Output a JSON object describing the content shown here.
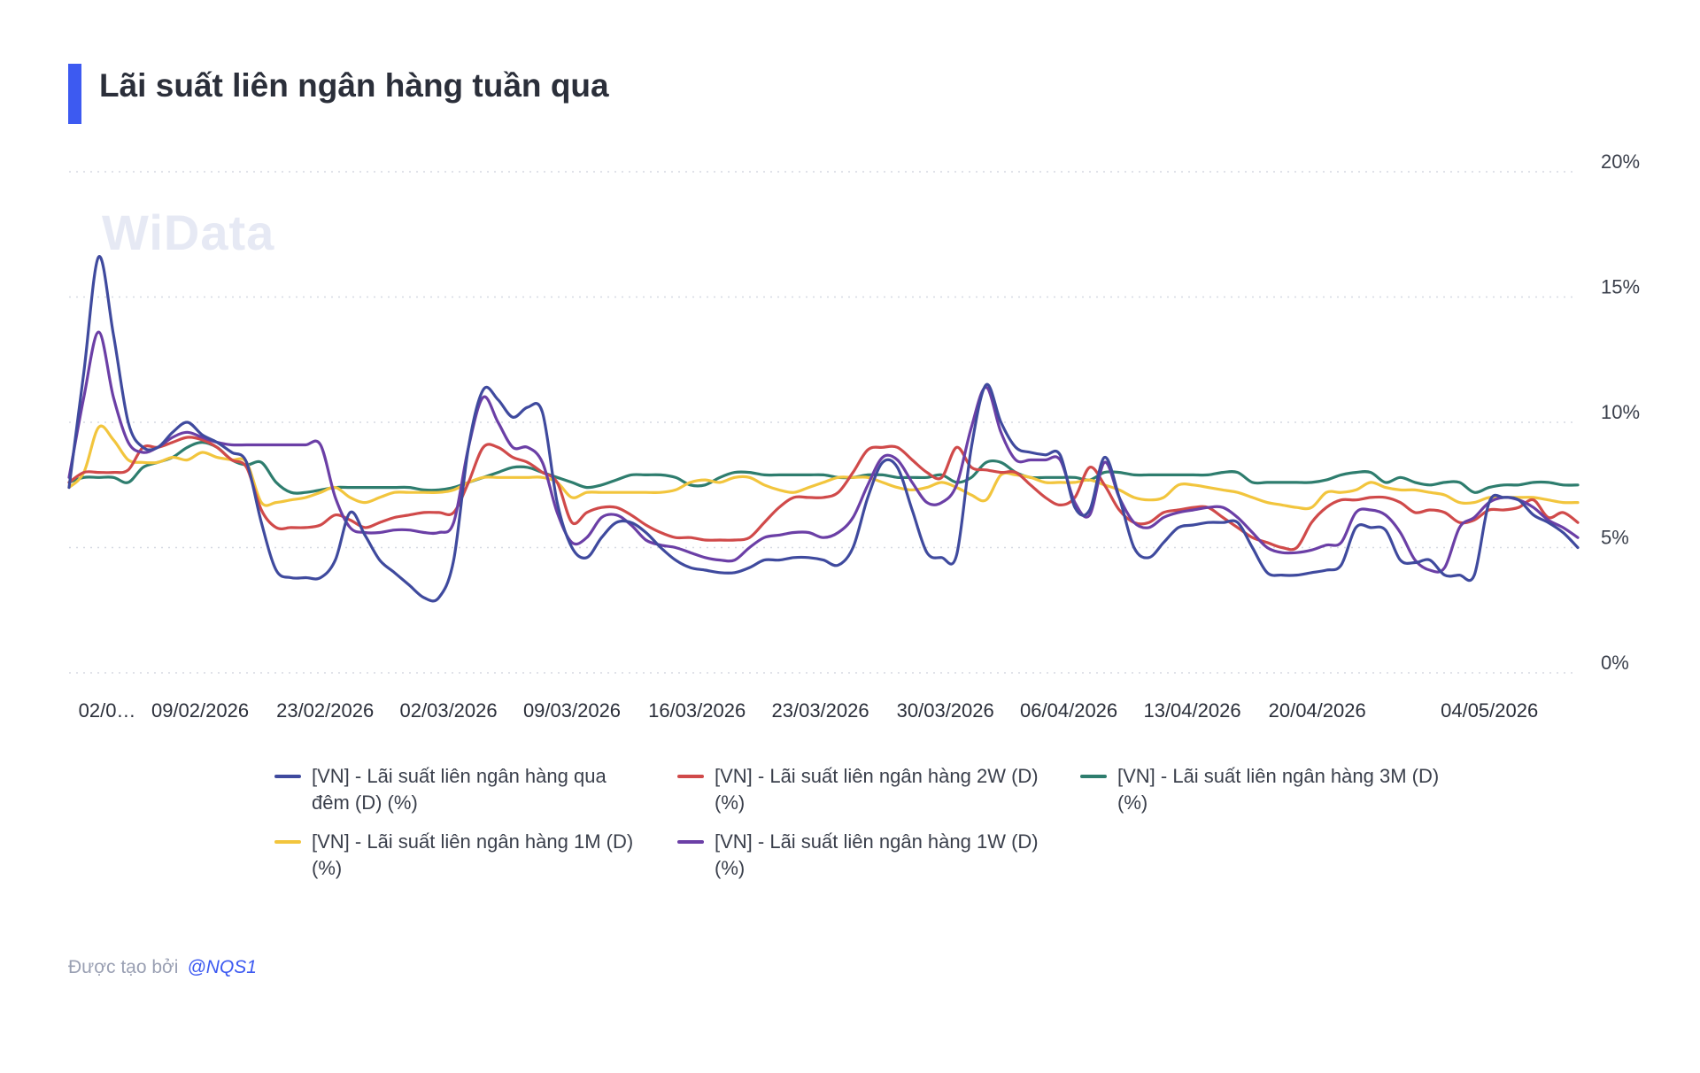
{
  "title": "Lãi suất liên ngân hàng tuần qua",
  "watermark": "WiData",
  "footer": {
    "prefix": "Được tạo bởi",
    "author": "@NQS1"
  },
  "colors": {
    "accent": "#3d5af1"
  },
  "chart_data": {
    "type": "line",
    "title": "Lãi suất liên ngân hàng tuần qua",
    "ylim": [
      0,
      20
    ],
    "yticks": [
      0,
      5,
      10,
      15,
      20
    ],
    "ytick_labels": [
      "0%",
      "5%",
      "10%",
      "15%",
      "20%"
    ],
    "y_axis_side": "right",
    "grid": "horizontal-dotted",
    "x_index_range": [
      0,
      99
    ],
    "xticks": [
      {
        "i": 2.5,
        "label": "02/0…"
      },
      {
        "i": 8.6,
        "label": "09/02/2026"
      },
      {
        "i": 16.8,
        "label": "23/02/2026"
      },
      {
        "i": 24.9,
        "label": "02/03/2026"
      },
      {
        "i": 33.0,
        "label": "09/03/2026"
      },
      {
        "i": 41.2,
        "label": "16/03/2026"
      },
      {
        "i": 49.3,
        "label": "23/03/2026"
      },
      {
        "i": 57.5,
        "label": "30/03/2026"
      },
      {
        "i": 65.6,
        "label": "06/04/2026"
      },
      {
        "i": 73.7,
        "label": "13/04/2026"
      },
      {
        "i": 81.9,
        "label": "20/04/2026"
      },
      {
        "i": 93.2,
        "label": "04/05/2026"
      }
    ],
    "legend_position": "bottom",
    "series": [
      {
        "name": "[VN] - Lãi suất liên ngân hàng qua đêm (D) (%)",
        "color": "#3f4a9e",
        "values": [
          7.4,
          12.0,
          16.6,
          13.5,
          10.0,
          9.0,
          9.0,
          9.6,
          10.0,
          9.5,
          9.2,
          8.8,
          8.4,
          6.0,
          4.1,
          3.8,
          3.8,
          3.8,
          4.5,
          6.4,
          5.5,
          4.5,
          4.0,
          3.5,
          3.0,
          3.0,
          4.5,
          9.0,
          11.3,
          10.9,
          10.2,
          10.6,
          10.4,
          6.8,
          5.0,
          4.6,
          5.4,
          6.0,
          6.0,
          5.6,
          5.0,
          4.5,
          4.2,
          4.1,
          4.0,
          4.0,
          4.2,
          4.5,
          4.5,
          4.6,
          4.6,
          4.5,
          4.3,
          5.0,
          7.0,
          8.4,
          8.2,
          6.5,
          4.8,
          4.6,
          4.7,
          9.0,
          11.5,
          10.0,
          9.0,
          8.8,
          8.7,
          8.7,
          6.6,
          6.5,
          8.6,
          7.0,
          5.0,
          4.6,
          5.2,
          5.8,
          5.9,
          6.0,
          6.0,
          6.0,
          5.0,
          4.0,
          3.9,
          3.9,
          4.0,
          4.1,
          4.3,
          5.8,
          5.8,
          5.7,
          4.5,
          4.4,
          4.5,
          3.9,
          3.9,
          3.9,
          6.8,
          7.0,
          6.9,
          6.3,
          6.0,
          5.6,
          5.0
        ]
      },
      {
        "name": "[VN] - Lãi suất liên ngân hàng 2W (D) (%)",
        "color": "#d04a4a",
        "values": [
          7.6,
          8.0,
          8.0,
          8.0,
          8.1,
          9.0,
          9.0,
          9.2,
          9.4,
          9.3,
          9.0,
          8.5,
          8.2,
          6.5,
          5.8,
          5.8,
          5.8,
          5.9,
          6.3,
          6.1,
          5.8,
          6.0,
          6.2,
          6.3,
          6.4,
          6.4,
          6.4,
          7.6,
          9.0,
          9.0,
          8.6,
          8.4,
          8.0,
          7.6,
          6.0,
          6.4,
          6.6,
          6.6,
          6.3,
          5.9,
          5.6,
          5.4,
          5.4,
          5.3,
          5.3,
          5.3,
          5.4,
          6.0,
          6.6,
          7.0,
          7.0,
          7.0,
          7.2,
          8.0,
          8.9,
          9.0,
          9.0,
          8.5,
          8.0,
          7.8,
          9.0,
          8.2,
          8.1,
          8.0,
          8.0,
          7.5,
          7.0,
          6.7,
          7.0,
          8.2,
          7.5,
          6.5,
          6.0,
          6.0,
          6.4,
          6.5,
          6.6,
          6.6,
          6.2,
          5.8,
          5.4,
          5.2,
          5.0,
          5.0,
          6.0,
          6.6,
          6.9,
          6.9,
          7.0,
          7.0,
          6.8,
          6.4,
          6.5,
          6.4,
          6.0,
          6.1,
          6.5,
          6.5,
          6.6,
          6.9,
          6.2,
          6.4,
          6.0
        ]
      },
      {
        "name": "[VN] - Lãi suất liên ngân hàng 3M (D) (%)",
        "color": "#2e7d6e",
        "values": [
          7.6,
          7.8,
          7.8,
          7.8,
          7.6,
          8.2,
          8.4,
          8.6,
          9.0,
          9.2,
          9.0,
          8.5,
          8.3,
          8.4,
          7.6,
          7.2,
          7.2,
          7.3,
          7.4,
          7.4,
          7.4,
          7.4,
          7.4,
          7.4,
          7.3,
          7.3,
          7.4,
          7.6,
          7.8,
          8.0,
          8.2,
          8.2,
          8.0,
          7.8,
          7.6,
          7.4,
          7.5,
          7.7,
          7.9,
          7.9,
          7.9,
          7.8,
          7.5,
          7.5,
          7.8,
          8.0,
          8.0,
          7.9,
          7.9,
          7.9,
          7.9,
          7.9,
          7.8,
          7.8,
          7.9,
          7.9,
          7.8,
          7.8,
          7.8,
          7.9,
          7.6,
          7.8,
          8.4,
          8.4,
          8.0,
          7.8,
          7.8,
          7.8,
          7.8,
          7.7,
          8.0,
          8.0,
          7.9,
          7.9,
          7.9,
          7.9,
          7.9,
          7.9,
          8.0,
          8.0,
          7.6,
          7.6,
          7.6,
          7.6,
          7.6,
          7.7,
          7.9,
          8.0,
          8.0,
          7.6,
          7.8,
          7.6,
          7.5,
          7.6,
          7.6,
          7.2,
          7.4,
          7.5,
          7.5,
          7.6,
          7.6,
          7.5,
          7.5
        ]
      },
      {
        "name": "[VN] - Lãi suất liên ngân hàng 1M (D) (%)",
        "color": "#f2c53d",
        "values": [
          7.4,
          8.0,
          9.8,
          9.3,
          8.5,
          8.4,
          8.4,
          8.6,
          8.5,
          8.8,
          8.6,
          8.5,
          8.4,
          6.8,
          6.8,
          6.9,
          7.0,
          7.2,
          7.4,
          7.0,
          6.8,
          7.0,
          7.2,
          7.2,
          7.2,
          7.2,
          7.3,
          7.6,
          7.8,
          7.8,
          7.8,
          7.8,
          7.8,
          7.6,
          7.0,
          7.2,
          7.2,
          7.2,
          7.2,
          7.2,
          7.2,
          7.3,
          7.6,
          7.7,
          7.6,
          7.8,
          7.8,
          7.5,
          7.3,
          7.2,
          7.4,
          7.6,
          7.8,
          7.8,
          7.8,
          7.6,
          7.4,
          7.3,
          7.4,
          7.6,
          7.4,
          7.1,
          6.9,
          7.9,
          7.9,
          7.8,
          7.6,
          7.6,
          7.6,
          7.7,
          7.5,
          7.3,
          7.0,
          6.9,
          7.0,
          7.5,
          7.5,
          7.4,
          7.3,
          7.2,
          7.0,
          6.8,
          6.7,
          6.6,
          6.6,
          7.2,
          7.2,
          7.3,
          7.6,
          7.4,
          7.3,
          7.3,
          7.2,
          7.1,
          6.8,
          6.8,
          7.0,
          7.0,
          7.0,
          7.0,
          6.9,
          6.8,
          6.8
        ]
      },
      {
        "name": "[VN] - Lãi suất liên ngân hàng 1W (D) (%)",
        "color": "#6b3fa6",
        "values": [
          7.8,
          11.0,
          13.6,
          11.0,
          9.2,
          8.8,
          9.0,
          9.4,
          9.6,
          9.4,
          9.2,
          9.1,
          9.1,
          9.1,
          9.1,
          9.1,
          9.1,
          9.1,
          7.0,
          5.8,
          5.6,
          5.6,
          5.7,
          5.7,
          5.6,
          5.6,
          6.0,
          9.0,
          11.0,
          10.0,
          9.0,
          9.0,
          8.4,
          6.4,
          5.2,
          5.4,
          6.2,
          6.3,
          5.9,
          5.3,
          5.1,
          5.0,
          4.8,
          4.6,
          4.5,
          4.5,
          5.0,
          5.4,
          5.5,
          5.6,
          5.6,
          5.4,
          5.6,
          6.2,
          7.5,
          8.6,
          8.5,
          7.6,
          6.8,
          6.8,
          7.5,
          9.8,
          11.4,
          9.6,
          8.5,
          8.5,
          8.5,
          8.5,
          6.8,
          6.3,
          8.4,
          7.0,
          6.0,
          5.8,
          6.2,
          6.4,
          6.5,
          6.6,
          6.6,
          6.2,
          5.6,
          5.0,
          4.8,
          4.8,
          4.9,
          5.1,
          5.2,
          6.4,
          6.5,
          6.3,
          5.6,
          4.5,
          4.1,
          4.2,
          5.8,
          6.2,
          6.8,
          7.0,
          6.9,
          6.6,
          6.1,
          5.8,
          5.4
        ]
      }
    ]
  }
}
